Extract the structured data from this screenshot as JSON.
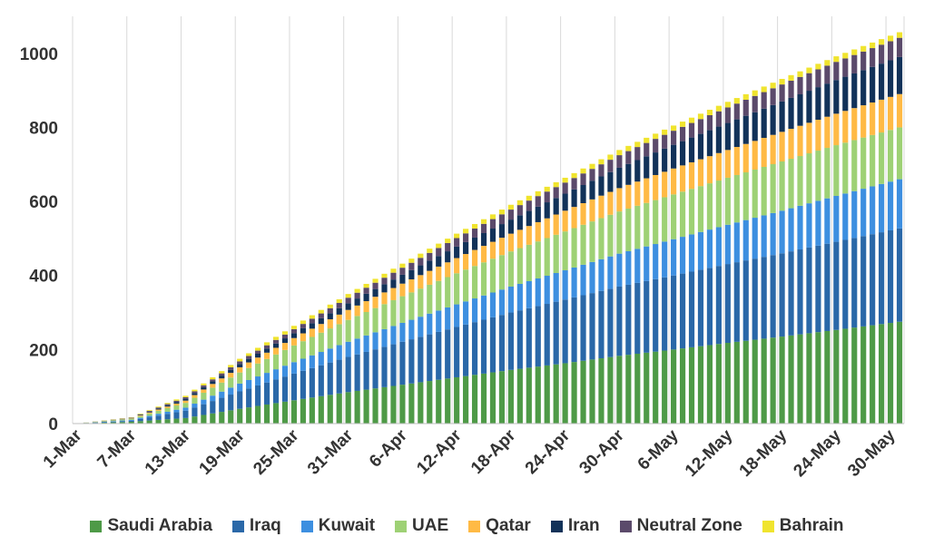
{
  "chart_data": {
    "type": "bar",
    "stacked": true,
    "title": "",
    "xlabel": "",
    "ylabel": "",
    "ylim": [
      0,
      1100
    ],
    "yticks": [
      0,
      200,
      400,
      600,
      800,
      1000
    ],
    "grid": "vertical",
    "legend_position": "bottom",
    "x_start": "1-Mar",
    "x_end": "31-May",
    "num_days": 92,
    "x_tick_labels": [
      "1-Mar",
      "7-Mar",
      "13-Mar",
      "19-Mar",
      "25-Mar",
      "31-Mar",
      "6-Apr",
      "12-Apr",
      "18-Apr",
      "24-Apr",
      "30-Apr",
      "6-May",
      "12-May",
      "18-May",
      "24-May",
      "30-May"
    ],
    "series": [
      {
        "name": "Saudi Arabia",
        "color": "#4e9a47",
        "values_at": [
          [
            1,
            0
          ],
          [
            7,
            5
          ],
          [
            13,
            15
          ],
          [
            19,
            40
          ],
          [
            25,
            63
          ],
          [
            31,
            85
          ],
          [
            37,
            105
          ],
          [
            43,
            125
          ],
          [
            49,
            145
          ],
          [
            55,
            163
          ],
          [
            61,
            183
          ],
          [
            67,
            200
          ],
          [
            73,
            218
          ],
          [
            79,
            235
          ],
          [
            85,
            253
          ],
          [
            92,
            275
          ]
        ]
      },
      {
        "name": "Iraq",
        "color": "#2a68a8",
        "values_at": [
          [
            1,
            0
          ],
          [
            7,
            3
          ],
          [
            13,
            20
          ],
          [
            19,
            47
          ],
          [
            25,
            72
          ],
          [
            31,
            95
          ],
          [
            37,
            116
          ],
          [
            43,
            136
          ],
          [
            49,
            155
          ],
          [
            55,
            172
          ],
          [
            61,
            187
          ],
          [
            67,
            200
          ],
          [
            73,
            213
          ],
          [
            79,
            225
          ],
          [
            85,
            238
          ],
          [
            92,
            252
          ]
        ]
      },
      {
        "name": "Kuwait",
        "color": "#3d8fe0",
        "values_at": [
          [
            1,
            0
          ],
          [
            7,
            2
          ],
          [
            13,
            8
          ],
          [
            19,
            21
          ],
          [
            25,
            31
          ],
          [
            31,
            41
          ],
          [
            37,
            51
          ],
          [
            43,
            61
          ],
          [
            49,
            70
          ],
          [
            55,
            79
          ],
          [
            61,
            89
          ],
          [
            67,
            98
          ],
          [
            73,
            106
          ],
          [
            79,
            115
          ],
          [
            85,
            124
          ],
          [
            92,
            133
          ]
        ]
      },
      {
        "name": "UAE",
        "color": "#9ed175",
        "values_at": [
          [
            1,
            0
          ],
          [
            7,
            3
          ],
          [
            13,
            13
          ],
          [
            19,
            30
          ],
          [
            25,
            45
          ],
          [
            31,
            59
          ],
          [
            37,
            72
          ],
          [
            43,
            84
          ],
          [
            49,
            95
          ],
          [
            55,
            105
          ],
          [
            61,
            114
          ],
          [
            67,
            121
          ],
          [
            73,
            127
          ],
          [
            79,
            133
          ],
          [
            85,
            137
          ],
          [
            92,
            140
          ]
        ]
      },
      {
        "name": "Qatar",
        "color": "#ffba45",
        "values_at": [
          [
            1,
            0
          ],
          [
            7,
            1
          ],
          [
            13,
            6
          ],
          [
            19,
            14
          ],
          [
            25,
            20
          ],
          [
            31,
            27
          ],
          [
            37,
            34
          ],
          [
            43,
            41
          ],
          [
            49,
            48
          ],
          [
            55,
            56
          ],
          [
            61,
            63
          ],
          [
            67,
            70
          ],
          [
            73,
            75
          ],
          [
            79,
            80
          ],
          [
            85,
            85
          ],
          [
            92,
            90
          ]
        ]
      },
      {
        "name": "Iran",
        "color": "#123259",
        "values_at": [
          [
            1,
            0
          ],
          [
            7,
            1
          ],
          [
            13,
            5
          ],
          [
            19,
            9
          ],
          [
            25,
            13
          ],
          [
            31,
            18
          ],
          [
            37,
            24
          ],
          [
            43,
            31
          ],
          [
            49,
            38
          ],
          [
            55,
            46
          ],
          [
            61,
            55
          ],
          [
            67,
            64
          ],
          [
            73,
            73
          ],
          [
            79,
            82
          ],
          [
            85,
            91
          ],
          [
            92,
            100
          ]
        ]
      },
      {
        "name": "Neutral Zone",
        "color": "#5b4a6b",
        "values_at": [
          [
            1,
            0
          ],
          [
            7,
            1
          ],
          [
            13,
            4
          ],
          [
            19,
            7
          ],
          [
            25,
            11
          ],
          [
            31,
            15
          ],
          [
            37,
            19
          ],
          [
            43,
            23
          ],
          [
            49,
            27
          ],
          [
            55,
            30
          ],
          [
            61,
            34
          ],
          [
            67,
            38
          ],
          [
            73,
            42
          ],
          [
            79,
            46
          ],
          [
            85,
            49
          ],
          [
            92,
            52
          ]
        ]
      },
      {
        "name": "Bahrain",
        "color": "#f0e42e",
        "values_at": [
          [
            1,
            0
          ],
          [
            7,
            1
          ],
          [
            13,
            4
          ],
          [
            19,
            7
          ],
          [
            25,
            9
          ],
          [
            31,
            10
          ],
          [
            37,
            11
          ],
          [
            43,
            12
          ],
          [
            49,
            13
          ],
          [
            55,
            13
          ],
          [
            61,
            14
          ],
          [
            67,
            14
          ],
          [
            73,
            15
          ],
          [
            79,
            15
          ],
          [
            85,
            15
          ],
          [
            92,
            15
          ]
        ]
      }
    ]
  }
}
